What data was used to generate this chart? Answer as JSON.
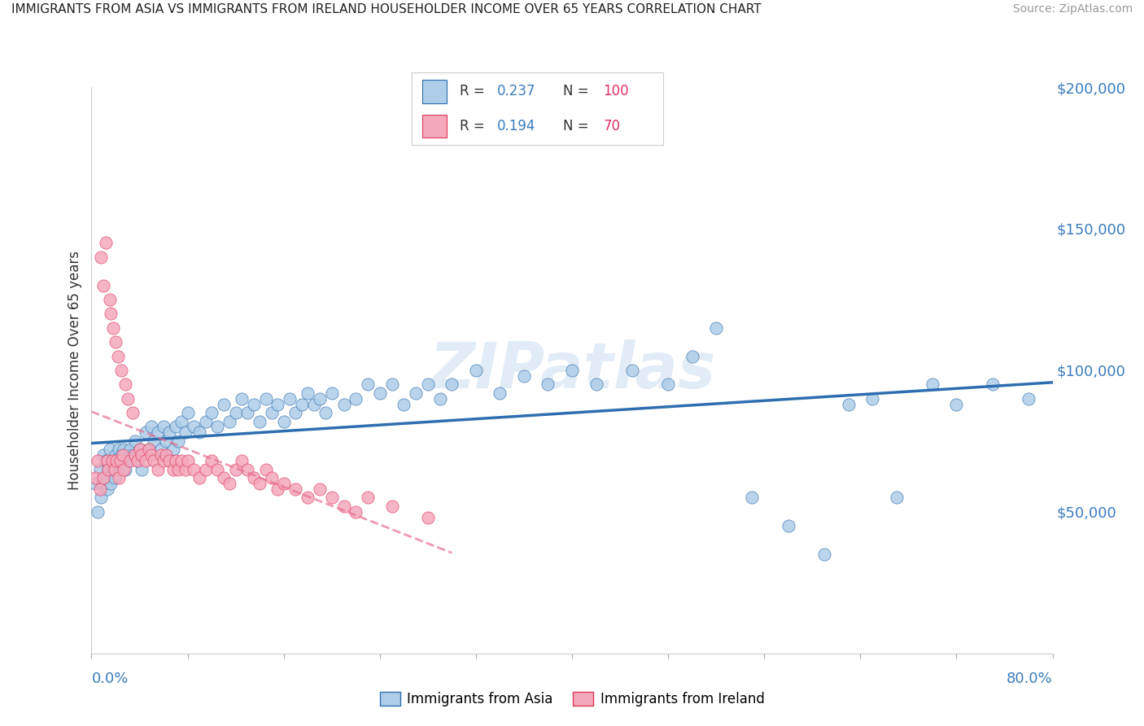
{
  "title": "IMMIGRANTS FROM ASIA VS IMMIGRANTS FROM IRELAND HOUSEHOLDER INCOME OVER 65 YEARS CORRELATION CHART",
  "source": "Source: ZipAtlas.com",
  "ylabel": "Householder Income Over 65 years",
  "asia_R": 0.237,
  "asia_N": 100,
  "ireland_R": 0.194,
  "ireland_N": 70,
  "asia_color": "#aecde8",
  "asia_line_color": "#2e6eb0",
  "ireland_color": "#f4a8bc",
  "ireland_line_color": "#e0385a",
  "ireland_trend_color": "#e87090",
  "watermark": "ZIPatlas",
  "watermark_color": "#b8d0ea",
  "xlim": [
    0.0,
    0.8
  ],
  "ylim": [
    0,
    200000
  ],
  "yticks": [
    50000,
    100000,
    150000,
    200000
  ],
  "ytick_labels": [
    "$50,000",
    "$100,000",
    "$150,000",
    "$200,000"
  ],
  "asia_x": [
    0.003,
    0.005,
    0.007,
    0.008,
    0.009,
    0.01,
    0.011,
    0.012,
    0.013,
    0.014,
    0.015,
    0.016,
    0.017,
    0.018,
    0.019,
    0.02,
    0.021,
    0.022,
    0.023,
    0.024,
    0.025,
    0.026,
    0.027,
    0.028,
    0.03,
    0.032,
    0.034,
    0.036,
    0.038,
    0.04,
    0.042,
    0.045,
    0.048,
    0.05,
    0.052,
    0.055,
    0.058,
    0.06,
    0.062,
    0.065,
    0.068,
    0.07,
    0.072,
    0.075,
    0.078,
    0.08,
    0.085,
    0.09,
    0.095,
    0.1,
    0.105,
    0.11,
    0.115,
    0.12,
    0.125,
    0.13,
    0.135,
    0.14,
    0.145,
    0.15,
    0.155,
    0.16,
    0.165,
    0.17,
    0.175,
    0.18,
    0.185,
    0.19,
    0.195,
    0.2,
    0.21,
    0.22,
    0.23,
    0.24,
    0.25,
    0.26,
    0.27,
    0.28,
    0.29,
    0.3,
    0.32,
    0.34,
    0.36,
    0.38,
    0.4,
    0.42,
    0.45,
    0.48,
    0.5,
    0.52,
    0.55,
    0.58,
    0.61,
    0.63,
    0.65,
    0.67,
    0.7,
    0.72,
    0.75,
    0.78
  ],
  "asia_y": [
    60000,
    50000,
    65000,
    55000,
    60000,
    70000,
    62000,
    68000,
    58000,
    65000,
    72000,
    60000,
    65000,
    68000,
    62000,
    70000,
    65000,
    68000,
    72000,
    65000,
    70000,
    68000,
    72000,
    65000,
    68000,
    72000,
    70000,
    75000,
    68000,
    72000,
    65000,
    78000,
    72000,
    80000,
    75000,
    78000,
    72000,
    80000,
    75000,
    78000,
    72000,
    80000,
    75000,
    82000,
    78000,
    85000,
    80000,
    78000,
    82000,
    85000,
    80000,
    88000,
    82000,
    85000,
    90000,
    85000,
    88000,
    82000,
    90000,
    85000,
    88000,
    82000,
    90000,
    85000,
    88000,
    92000,
    88000,
    90000,
    85000,
    92000,
    88000,
    90000,
    95000,
    92000,
    95000,
    88000,
    92000,
    95000,
    90000,
    95000,
    100000,
    92000,
    98000,
    95000,
    100000,
    95000,
    100000,
    95000,
    105000,
    115000,
    55000,
    45000,
    35000,
    88000,
    90000,
    55000,
    95000,
    88000,
    95000,
    90000
  ],
  "ireland_x": [
    0.003,
    0.005,
    0.007,
    0.008,
    0.01,
    0.01,
    0.012,
    0.013,
    0.014,
    0.015,
    0.016,
    0.017,
    0.018,
    0.019,
    0.02,
    0.021,
    0.022,
    0.023,
    0.024,
    0.025,
    0.026,
    0.027,
    0.028,
    0.03,
    0.032,
    0.034,
    0.036,
    0.038,
    0.04,
    0.042,
    0.045,
    0.048,
    0.05,
    0.052,
    0.055,
    0.058,
    0.06,
    0.062,
    0.065,
    0.068,
    0.07,
    0.072,
    0.075,
    0.078,
    0.08,
    0.085,
    0.09,
    0.095,
    0.1,
    0.105,
    0.11,
    0.115,
    0.12,
    0.125,
    0.13,
    0.135,
    0.14,
    0.145,
    0.15,
    0.155,
    0.16,
    0.17,
    0.18,
    0.19,
    0.2,
    0.21,
    0.22,
    0.23,
    0.25,
    0.28
  ],
  "ireland_y": [
    62000,
    68000,
    58000,
    140000,
    130000,
    62000,
    145000,
    68000,
    65000,
    125000,
    120000,
    68000,
    115000,
    65000,
    110000,
    68000,
    105000,
    62000,
    68000,
    100000,
    70000,
    65000,
    95000,
    90000,
    68000,
    85000,
    70000,
    68000,
    72000,
    70000,
    68000,
    72000,
    70000,
    68000,
    65000,
    70000,
    68000,
    70000,
    68000,
    65000,
    68000,
    65000,
    68000,
    65000,
    68000,
    65000,
    62000,
    65000,
    68000,
    65000,
    62000,
    60000,
    65000,
    68000,
    65000,
    62000,
    60000,
    65000,
    62000,
    58000,
    60000,
    58000,
    55000,
    58000,
    55000,
    52000,
    50000,
    55000,
    52000,
    48000
  ]
}
